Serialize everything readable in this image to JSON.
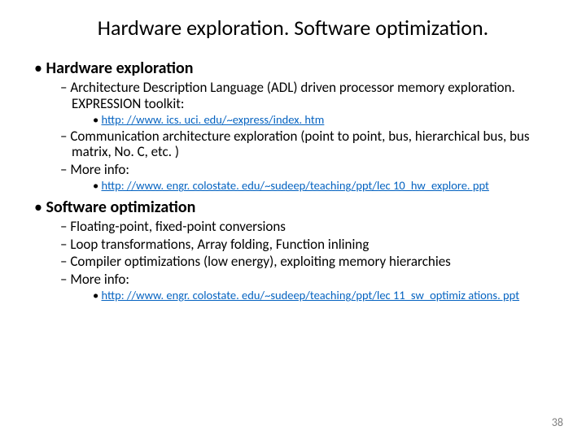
{
  "title": "Hardware exploration. Software optimization.",
  "sections": [
    {
      "heading": "Hardware exploration",
      "items": [
        {
          "text": "Architecture Description Language (ADL) driven processor memory exploration. EXPRESSION toolkit:",
          "link": null
        },
        {
          "text": "",
          "link": "http: //www. ics. uci. edu/~express/index. htm",
          "level": 3
        },
        {
          "text": "Communication architecture exploration (point to point, bus, hierarchical bus, bus matrix, No. C, etc. )",
          "link": null
        },
        {
          "text": "More info:",
          "link": null
        },
        {
          "text": "",
          "link": "http: //www. engr. colostate. edu/~sudeep/teaching/ppt/lec 10_hw_explore. ppt",
          "level": 3
        }
      ]
    },
    {
      "heading": "Software optimization",
      "items": [
        {
          "text": "Floating-point, fixed-point conversions",
          "link": null
        },
        {
          "text": "Loop transformations, Array folding, Function inlining",
          "link": null
        },
        {
          "text": "Compiler optimizations (low energy), exploiting memory hierarchies",
          "link": null
        },
        {
          "text": "More info:",
          "link": null
        },
        {
          "text": "",
          "link": "http: //www. engr. colostate. edu/~sudeep/teaching/ppt/lec 11_sw_optimiz ations. ppt",
          "level": 3
        }
      ]
    }
  ],
  "pageNumber": "38",
  "colors": {
    "link": "#0563c1",
    "pageNum": "#808080",
    "text": "#000000",
    "background": "#ffffff"
  },
  "typography": {
    "titleSize": 26,
    "l1Size": 20,
    "l2Size": 17,
    "l3Size": 14.5,
    "fontFamily": "Calibri"
  }
}
